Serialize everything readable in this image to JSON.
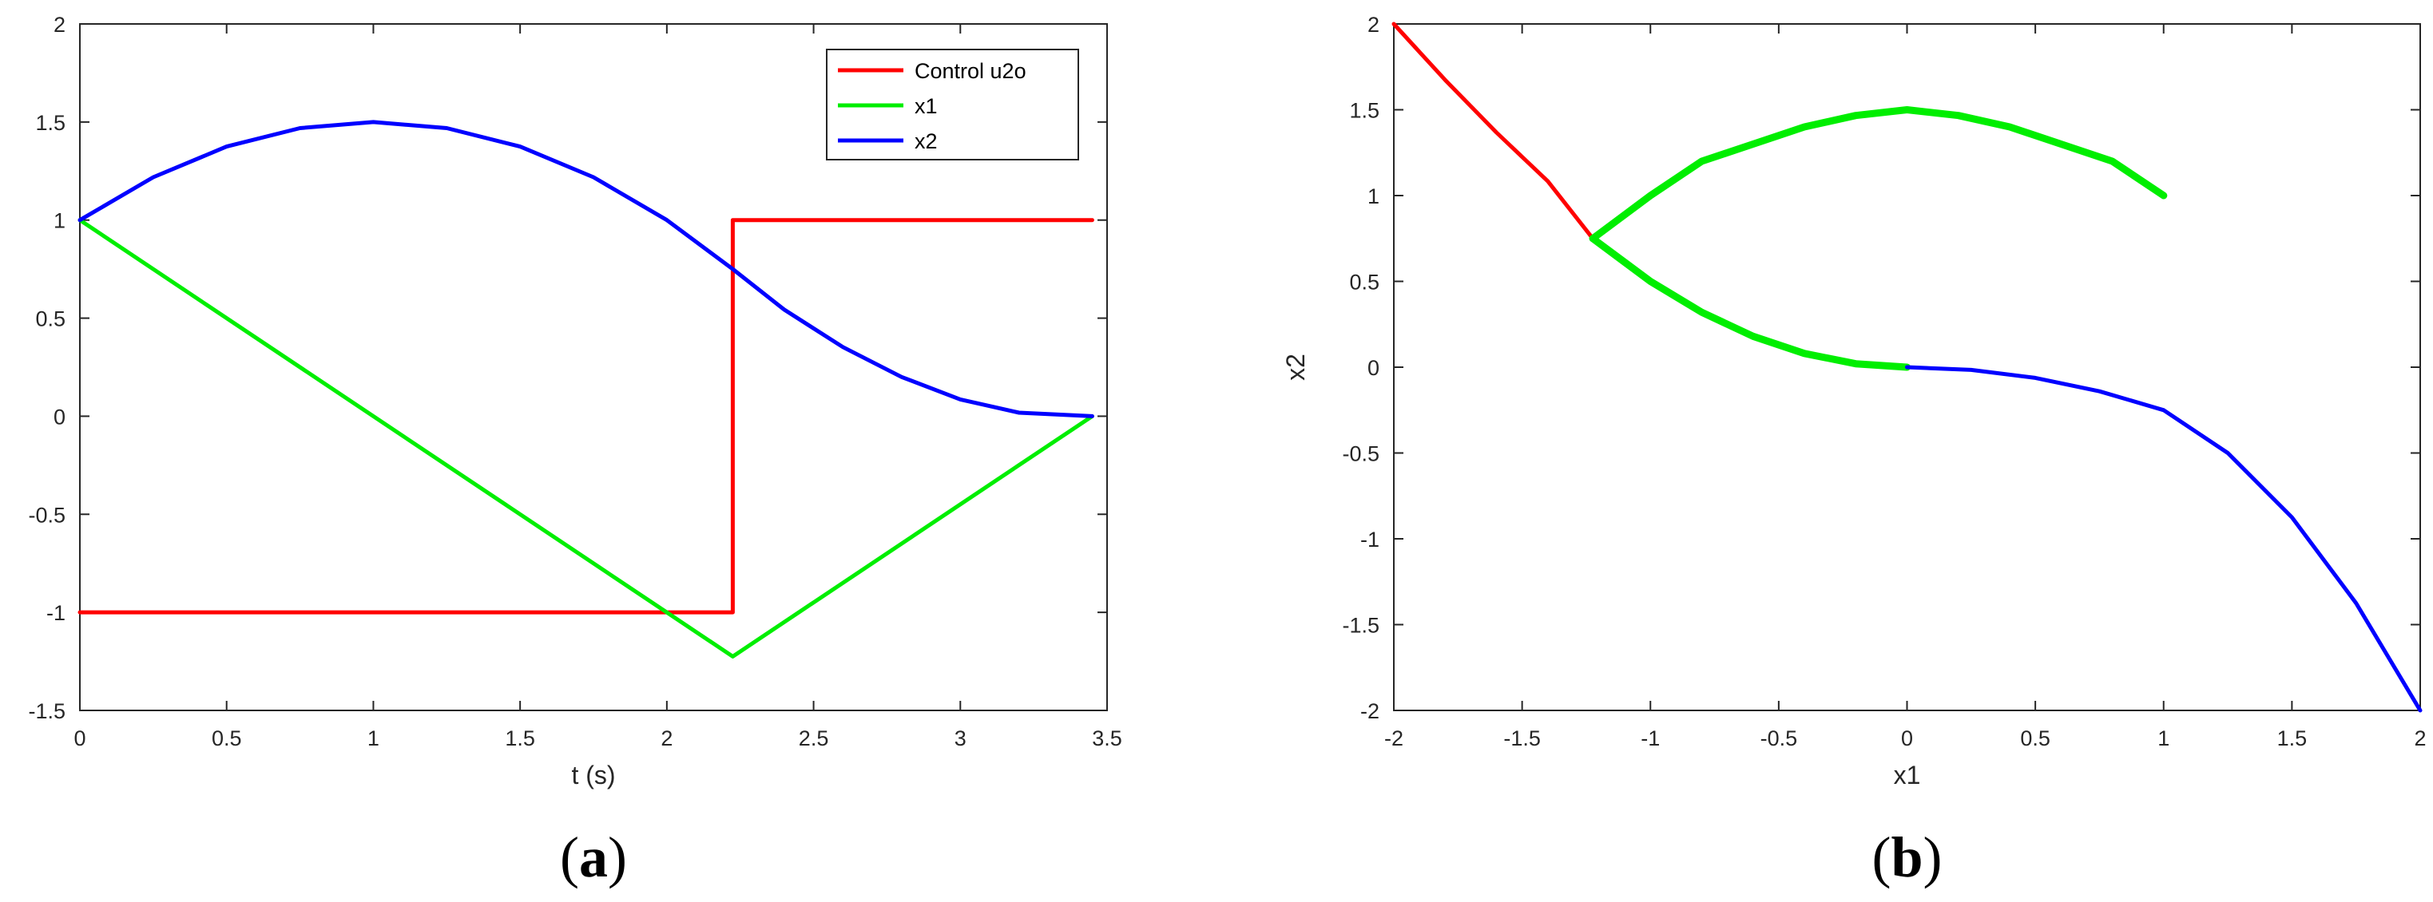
{
  "colors": {
    "control": "#ff0000",
    "x1": "#00ee00",
    "x2": "#0000ff",
    "axes": "#262626"
  },
  "panels": {
    "a": {
      "label_open": "(",
      "label_letter": "a",
      "label_close": ")"
    },
    "b": {
      "label_open": "(",
      "label_letter": "b",
      "label_close": ")"
    }
  },
  "chart_data": [
    {
      "type": "line",
      "xlabel": "t (s)",
      "ylabel": "",
      "xlim": [
        0,
        3.5
      ],
      "ylim": [
        -1.5,
        2
      ],
      "xticks": [
        0,
        0.5,
        1,
        1.5,
        2,
        2.5,
        3,
        3.5
      ],
      "xtick_labels": [
        "0",
        "0.5",
        "1",
        "1.5",
        "2",
        "2.5",
        "3",
        "3.5"
      ],
      "yticks": [
        -1.5,
        -1,
        -0.5,
        0,
        0.5,
        1,
        1.5,
        2
      ],
      "ytick_labels": [
        "-1.5",
        "-1",
        "-0.5",
        "0",
        "0.5",
        "1",
        "1.5",
        "2"
      ],
      "grid": false,
      "legend_position": "top-right",
      "series": [
        {
          "name": "Control u2o",
          "color_key": "control",
          "x": [
            0,
            2.2247,
            2.2247,
            3.4495
          ],
          "y": [
            -1,
            -1,
            1,
            1
          ]
        },
        {
          "name": "x1",
          "color_key": "x1",
          "x": [
            0,
            2.2247,
            3.4495
          ],
          "y": [
            1,
            -1.2247,
            0
          ]
        },
        {
          "name": "x2",
          "color_key": "x2",
          "x": [
            0,
            0.25,
            0.5,
            0.75,
            1.0,
            1.25,
            1.5,
            1.75,
            2.0,
            2.2247,
            2.4,
            2.6,
            2.8,
            3.0,
            3.2,
            3.4495
          ],
          "y": [
            1,
            1.2188,
            1.375,
            1.4688,
            1.5,
            1.4688,
            1.375,
            1.2188,
            1.0,
            0.75,
            0.5434,
            0.3525,
            0.2,
            0.0854,
            0.0179,
            0
          ]
        }
      ]
    },
    {
      "type": "line",
      "xlabel": "x1",
      "ylabel": "x2",
      "xlim": [
        -2,
        2
      ],
      "ylim": [
        -2,
        2
      ],
      "xticks": [
        -2,
        -1.5,
        -1,
        -0.5,
        0,
        0.5,
        1,
        1.5,
        2
      ],
      "xtick_labels": [
        "-2",
        "-1.5",
        "-1",
        "-0.5",
        "0",
        "0.5",
        "1",
        "1.5",
        "2"
      ],
      "yticks": [
        -2,
        -1.5,
        -1,
        -0.5,
        0,
        0.5,
        1,
        1.5,
        2
      ],
      "ytick_labels": [
        "-2",
        "-1.5",
        "-1",
        "-0.5",
        "0",
        "0.5",
        "1",
        "1.5",
        "2"
      ],
      "grid": false,
      "series": [
        {
          "color_key": "control",
          "width": "normal",
          "x": [
            -2,
            -1.8,
            -1.6,
            -1.4,
            -1.2247
          ],
          "y": [
            2,
            1.6733,
            1.3675,
            1.0832,
            0.75
          ]
        },
        {
          "color_key": "x1",
          "width": "thick",
          "x": [
            1,
            0.8,
            0.6,
            0.4,
            0.2,
            0,
            -0.2,
            -0.4,
            -0.6,
            -0.8,
            -1.0,
            -1.2247
          ],
          "y": [
            1,
            1.2,
            1.3,
            1.4,
            1.4667,
            1.5,
            1.4667,
            1.4,
            1.3,
            1.2,
            1.0,
            0.75
          ]
        },
        {
          "color_key": "x1",
          "width": "thick",
          "x": [
            -1.2247,
            -1.0,
            -0.8,
            -0.6,
            -0.4,
            -0.2,
            0
          ],
          "y": [
            0.75,
            0.5,
            0.32,
            0.18,
            0.08,
            0.02,
            0
          ]
        },
        {
          "color_key": "x2",
          "width": "normal",
          "x": [
            0,
            0.25,
            0.5,
            0.75,
            1.0,
            1.25,
            1.5,
            1.75,
            2.0
          ],
          "y": [
            0,
            -0.0156,
            -0.0625,
            -0.1406,
            -0.25,
            -0.5,
            -0.875,
            -1.375,
            -2.0
          ]
        }
      ]
    }
  ]
}
